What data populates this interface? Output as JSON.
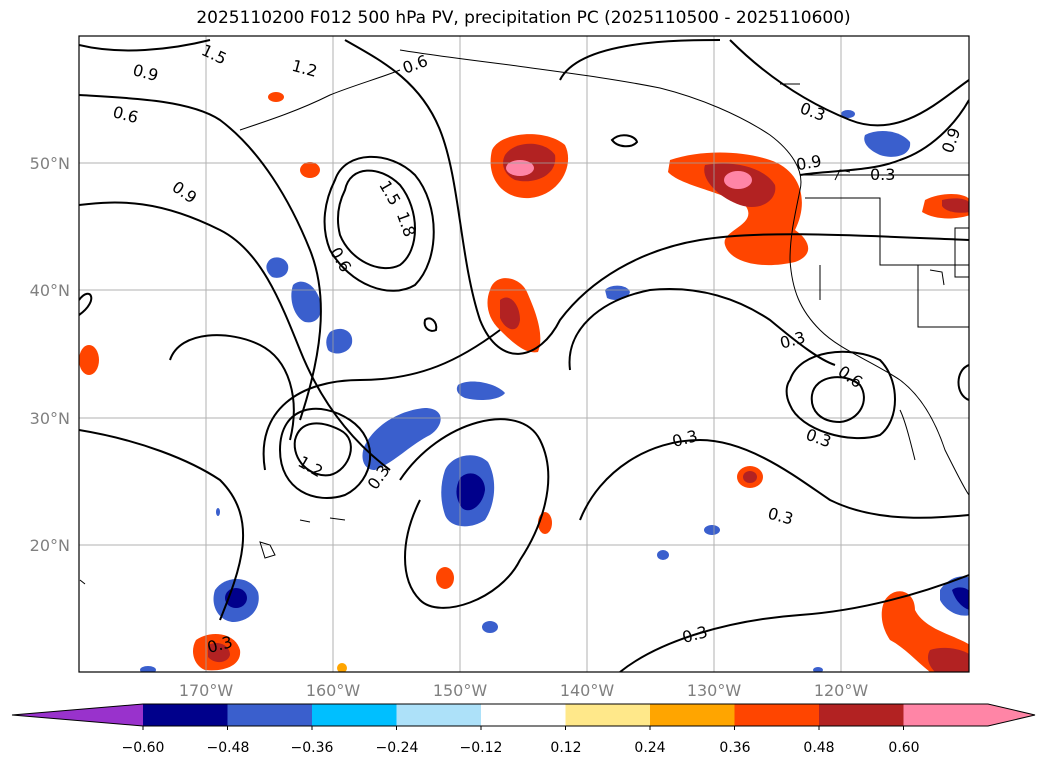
{
  "title": "2025110200 F012 500 hPa PV, precipitation PC (2025110500 - 2025110600)",
  "map": {
    "lat_labels": [
      "50°N",
      "40°N",
      "30°N",
      "20°N"
    ],
    "lon_labels": [
      "170°W",
      "160°W",
      "150°W",
      "140°W",
      "130°W",
      "120°W"
    ]
  },
  "contour_labels": [
    "1.5",
    "0.9",
    "1.2",
    "0.6",
    "0.9",
    "1.5",
    "1.8",
    "0.6",
    "1.2",
    "0.3",
    "0.3",
    "0.3",
    "0.3",
    "0.6",
    "0.3",
    "0.3",
    "0.9",
    "0.3",
    "0.3",
    "0.3",
    "0.9",
    "0.6"
  ],
  "colorbar": {
    "tick_labels": [
      "−0.60",
      "−0.48",
      "−0.36",
      "−0.24",
      "−0.12",
      "0.12",
      "0.24",
      "0.36",
      "0.48",
      "0.60"
    ],
    "colors": [
      "#9932CC",
      "#00008B",
      "#3A5FCD",
      "#00BFFF",
      "#ADE1F9",
      "#FFFFFF",
      "#FFE88A",
      "#FFA500",
      "#FF4500",
      "#B22222",
      "#FF85A6",
      "#FF85A6"
    ]
  }
}
